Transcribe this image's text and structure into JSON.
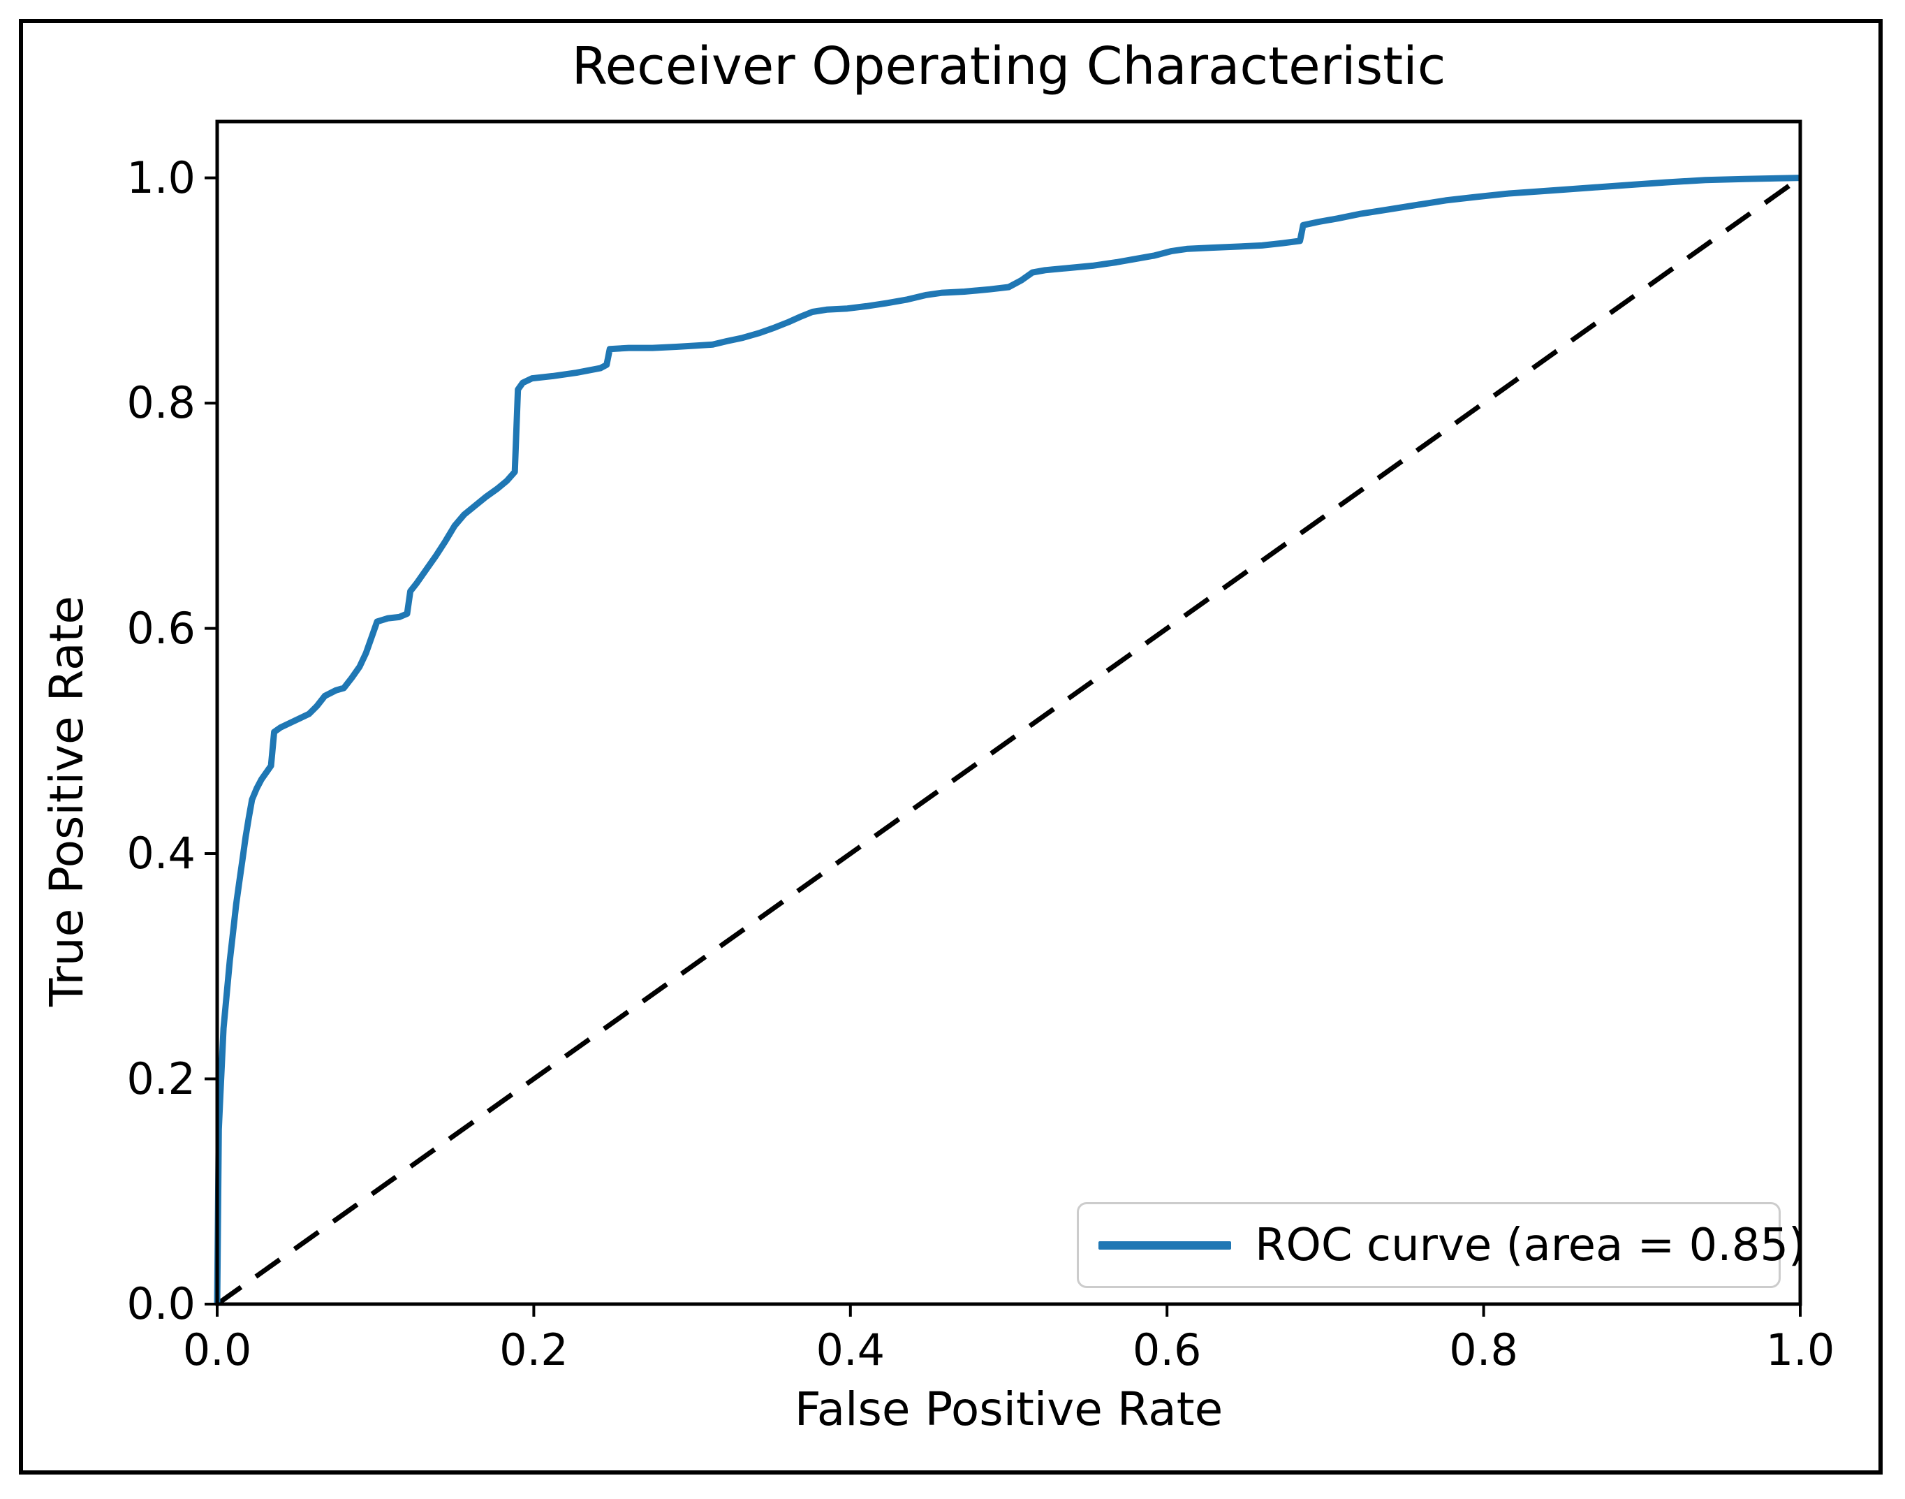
{
  "figure": {
    "background": "#ffffff",
    "frame_color": "#000000",
    "text_color": "#000000"
  },
  "chart_data": {
    "type": "line",
    "title": "Receiver Operating Characteristic",
    "xlabel": "False Positive Rate",
    "ylabel": "True Positive Rate",
    "xlim": [
      0.0,
      1.0
    ],
    "ylim": [
      0.0,
      1.05
    ],
    "grid": false,
    "x_ticks": [
      0.0,
      0.2,
      0.4,
      0.6,
      0.8,
      1.0
    ],
    "x_tick_labels": [
      "0.0",
      "0.2",
      "0.4",
      "0.6",
      "0.8",
      "1.0"
    ],
    "y_ticks": [
      0.0,
      0.2,
      0.4,
      0.6,
      0.8,
      1.0
    ],
    "y_tick_labels": [
      "0.0",
      "0.2",
      "0.4",
      "0.6",
      "0.8",
      "1.0"
    ],
    "auc": 0.85,
    "legend": {
      "position": "lower right",
      "entries": [
        {
          "label": "ROC curve (area = 0.85)",
          "color": "#1f77b4",
          "style": "solid"
        }
      ]
    },
    "series": [
      {
        "name": "ROC curve",
        "color": "#1f77b4",
        "style": "solid",
        "points": [
          [
            0.0,
            0.0
          ],
          [
            0.001,
            0.155
          ],
          [
            0.002,
            0.185
          ],
          [
            0.003,
            0.215
          ],
          [
            0.004,
            0.245
          ],
          [
            0.006,
            0.275
          ],
          [
            0.008,
            0.305
          ],
          [
            0.01,
            0.33
          ],
          [
            0.012,
            0.355
          ],
          [
            0.014,
            0.375
          ],
          [
            0.016,
            0.395
          ],
          [
            0.018,
            0.415
          ],
          [
            0.02,
            0.432
          ],
          [
            0.022,
            0.448
          ],
          [
            0.025,
            0.458
          ],
          [
            0.028,
            0.466
          ],
          [
            0.031,
            0.472
          ],
          [
            0.034,
            0.478
          ],
          [
            0.036,
            0.508
          ],
          [
            0.04,
            0.512
          ],
          [
            0.046,
            0.516
          ],
          [
            0.052,
            0.52
          ],
          [
            0.058,
            0.524
          ],
          [
            0.063,
            0.531
          ],
          [
            0.068,
            0.54
          ],
          [
            0.075,
            0.545
          ],
          [
            0.08,
            0.547
          ],
          [
            0.085,
            0.556
          ],
          [
            0.09,
            0.566
          ],
          [
            0.094,
            0.578
          ],
          [
            0.098,
            0.594
          ],
          [
            0.101,
            0.606
          ],
          [
            0.108,
            0.609
          ],
          [
            0.115,
            0.61
          ],
          [
            0.12,
            0.613
          ],
          [
            0.122,
            0.633
          ],
          [
            0.126,
            0.64
          ],
          [
            0.132,
            0.652
          ],
          [
            0.138,
            0.664
          ],
          [
            0.144,
            0.677
          ],
          [
            0.15,
            0.691
          ],
          [
            0.156,
            0.701
          ],
          [
            0.163,
            0.709
          ],
          [
            0.17,
            0.717
          ],
          [
            0.177,
            0.724
          ],
          [
            0.183,
            0.731
          ],
          [
            0.188,
            0.739
          ],
          [
            0.19,
            0.812
          ],
          [
            0.193,
            0.818
          ],
          [
            0.199,
            0.822
          ],
          [
            0.212,
            0.824
          ],
          [
            0.227,
            0.827
          ],
          [
            0.242,
            0.831
          ],
          [
            0.246,
            0.834
          ],
          [
            0.248,
            0.848
          ],
          [
            0.26,
            0.849
          ],
          [
            0.275,
            0.849
          ],
          [
            0.29,
            0.85
          ],
          [
            0.302,
            0.851
          ],
          [
            0.313,
            0.852
          ],
          [
            0.322,
            0.855
          ],
          [
            0.332,
            0.858
          ],
          [
            0.342,
            0.862
          ],
          [
            0.352,
            0.867
          ],
          [
            0.361,
            0.872
          ],
          [
            0.369,
            0.877
          ],
          [
            0.376,
            0.881
          ],
          [
            0.385,
            0.883
          ],
          [
            0.398,
            0.884
          ],
          [
            0.41,
            0.886
          ],
          [
            0.424,
            0.889
          ],
          [
            0.436,
            0.892
          ],
          [
            0.448,
            0.896
          ],
          [
            0.458,
            0.898
          ],
          [
            0.472,
            0.899
          ],
          [
            0.488,
            0.901
          ],
          [
            0.5,
            0.903
          ],
          [
            0.508,
            0.909
          ],
          [
            0.515,
            0.916
          ],
          [
            0.523,
            0.918
          ],
          [
            0.538,
            0.92
          ],
          [
            0.553,
            0.922
          ],
          [
            0.568,
            0.925
          ],
          [
            0.58,
            0.928
          ],
          [
            0.592,
            0.931
          ],
          [
            0.603,
            0.935
          ],
          [
            0.613,
            0.937
          ],
          [
            0.628,
            0.938
          ],
          [
            0.645,
            0.939
          ],
          [
            0.66,
            0.94
          ],
          [
            0.673,
            0.942
          ],
          [
            0.684,
            0.944
          ],
          [
            0.686,
            0.958
          ],
          [
            0.696,
            0.961
          ],
          [
            0.708,
            0.964
          ],
          [
            0.722,
            0.968
          ],
          [
            0.74,
            0.972
          ],
          [
            0.758,
            0.976
          ],
          [
            0.776,
            0.98
          ],
          [
            0.795,
            0.983
          ],
          [
            0.815,
            0.986
          ],
          [
            0.835,
            0.988
          ],
          [
            0.855,
            0.99
          ],
          [
            0.875,
            0.992
          ],
          [
            0.895,
            0.994
          ],
          [
            0.915,
            0.996
          ],
          [
            0.94,
            0.998
          ],
          [
            0.965,
            0.999
          ],
          [
            1.0,
            1.0
          ]
        ]
      },
      {
        "name": "chance diagonal",
        "color": "#000000",
        "style": "dashed",
        "points": [
          [
            0.0,
            0.0
          ],
          [
            1.0,
            1.0
          ]
        ]
      }
    ]
  }
}
